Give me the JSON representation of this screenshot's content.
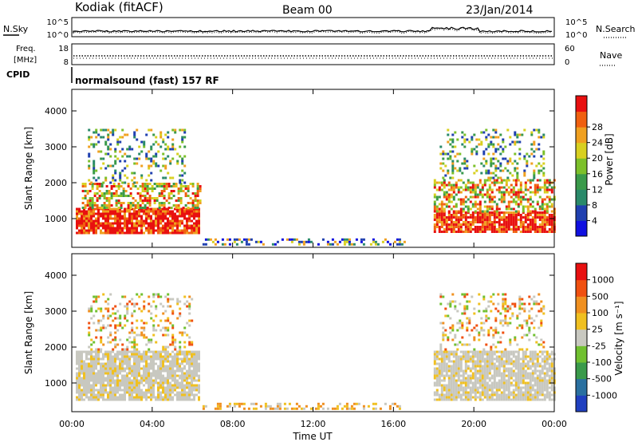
{
  "header": {
    "station": "Kodiak (fitACF)",
    "beam": "Beam 00",
    "date": "23/Jan/2014"
  },
  "top_panels": {
    "nsky_label": "N.Sky",
    "nsearch_label": "N.Search",
    "noise_ticks": [
      "10^5",
      "10^0"
    ],
    "freq_label_1": "Freq.",
    "freq_label_2": "[MHz]",
    "freq_ticks": [
      "18",
      "8"
    ],
    "nave_label": "Nave",
    "nave_ticks": [
      "60",
      "0"
    ],
    "cpid_label": "CPID",
    "cpid_text": "normalsound (fast) 157 RF"
  },
  "chart_data": [
    {
      "type": "heatmap",
      "name": "power",
      "xlabel": "Time UT",
      "ylabel": "Slant Range [km]",
      "ylim": [
        200,
        4600
      ],
      "yticks": [
        1000,
        2000,
        3000,
        4000
      ],
      "xlim_hours": [
        0,
        24
      ],
      "xticks": [
        "00:00",
        "04:00",
        "08:00",
        "12:00",
        "16:00",
        "20:00",
        "00:00"
      ],
      "colorbar": {
        "label": "Power [dB]",
        "ticks": [
          "4",
          "8",
          "12",
          "16",
          "20",
          "24",
          "28"
        ],
        "colors": [
          "#1010e0",
          "#2040b0",
          "#2a8a6a",
          "#3a9a4a",
          "#7cc02a",
          "#d8d020",
          "#f0a020",
          "#f06010",
          "#e81010"
        ]
      },
      "regions": [
        {
          "t0": 0.2,
          "t1": 6.3,
          "r0": 600,
          "r1": 1300,
          "level": "high"
        },
        {
          "t0": 0.5,
          "t1": 6.4,
          "r0": 1300,
          "r1": 2000,
          "level": "mid"
        },
        {
          "t0": 0.8,
          "t1": 5.6,
          "r0": 2000,
          "r1": 3500,
          "level": "mixed"
        },
        {
          "t0": 6.5,
          "t1": 16.5,
          "r0": 250,
          "r1": 450,
          "level": "low"
        },
        {
          "t0": 18.0,
          "t1": 24.0,
          "r0": 600,
          "r1": 1200,
          "level": "high"
        },
        {
          "t0": 18.0,
          "t1": 24.0,
          "r0": 1200,
          "r1": 2100,
          "level": "mid"
        },
        {
          "t0": 18.3,
          "t1": 23.5,
          "r0": 2100,
          "r1": 3500,
          "level": "mixed"
        }
      ]
    },
    {
      "type": "heatmap",
      "name": "velocity",
      "xlabel": "Time UT",
      "ylabel": "Slant Range [km]",
      "ylim": [
        200,
        4600
      ],
      "yticks": [
        1000,
        2000,
        3000,
        4000
      ],
      "xlim_hours": [
        0,
        24
      ],
      "xticks": [
        "00:00",
        "04:00",
        "08:00",
        "12:00",
        "16:00",
        "20:00",
        "00:00"
      ],
      "colorbar": {
        "label": "Velocity [m s⁻¹]",
        "ticks": [
          "1000",
          "500",
          "100",
          "25",
          "-25",
          "-100",
          "-500",
          "-1000"
        ],
        "colors": [
          "#2040c0",
          "#2a70a0",
          "#3a9a4a",
          "#70c030",
          "#c8c8c0",
          "#f0c020",
          "#f09020",
          "#f05010",
          "#e81010"
        ]
      },
      "regions": [
        {
          "t0": 0.2,
          "t1": 6.3,
          "r0": 500,
          "r1": 1900,
          "level": "ground"
        },
        {
          "t0": 0.8,
          "t1": 6.0,
          "r0": 1900,
          "r1": 3500,
          "level": "mixed"
        },
        {
          "t0": 6.5,
          "t1": 16.5,
          "r0": 250,
          "r1": 450,
          "level": "low"
        },
        {
          "t0": 18.0,
          "t1": 24.0,
          "r0": 500,
          "r1": 1900,
          "level": "ground"
        },
        {
          "t0": 18.3,
          "t1": 23.5,
          "r0": 1900,
          "r1": 3500,
          "level": "mixed"
        }
      ]
    }
  ]
}
